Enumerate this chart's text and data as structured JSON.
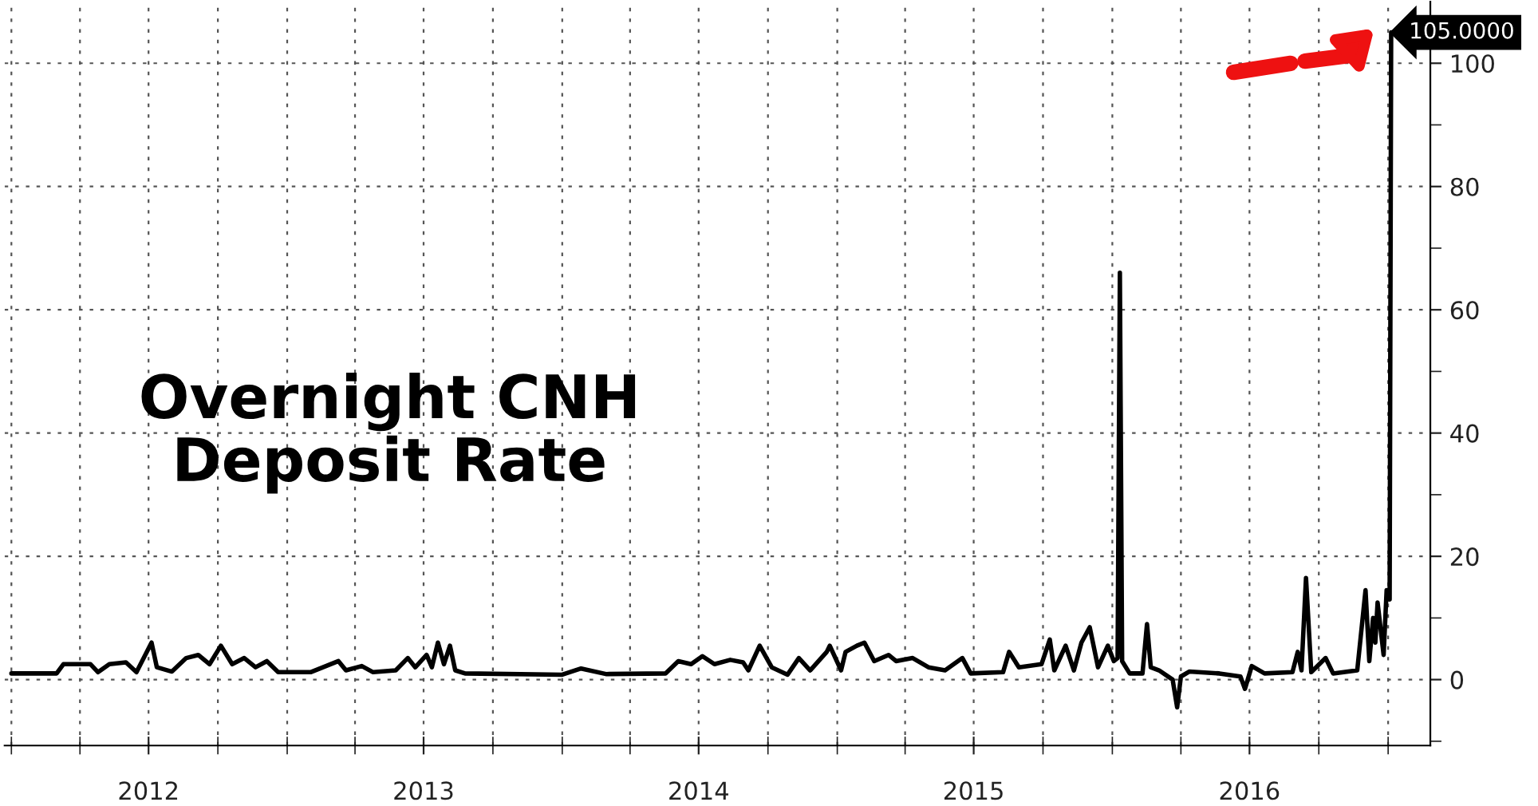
{
  "chart_data": {
    "type": "line",
    "title": "Overnight CNH Deposit Rate",
    "x": [
      "2012-01-01",
      "2012-03-01",
      "2012-03-10",
      "2012-04-15",
      "2012-04-25",
      "2012-05-10",
      "2012-06-01",
      "2012-06-15",
      "2012-07-05",
      "2012-07-12",
      "2012-08-01",
      "2012-08-20",
      "2012-09-05",
      "2012-09-20",
      "2012-10-05",
      "2012-10-20",
      "2012-11-05",
      "2012-11-20",
      "2012-12-05",
      "2012-12-20",
      "2013-01-05",
      "2013-02-01",
      "2013-03-10",
      "2013-03-20",
      "2013-04-10",
      "2013-04-25",
      "2013-05-25",
      "2013-06-10",
      "2013-06-20",
      "2013-07-05",
      "2013-07-12",
      "2013-07-20",
      "2013-07-28",
      "2013-08-05",
      "2013-08-12",
      "2013-08-25",
      "2014-01-01",
      "2014-01-26",
      "2014-02-28",
      "2014-05-18",
      "2014-06-04",
      "2014-06-21",
      "2014-07-06",
      "2014-07-22",
      "2014-08-12",
      "2014-08-29",
      "2014-09-05",
      "2014-09-20",
      "2014-10-06",
      "2014-10-27",
      "2014-11-11",
      "2014-11-26",
      "2014-12-18",
      "2014-12-22",
      "2015-01-06",
      "2015-01-12",
      "2015-01-27",
      "2015-02-06",
      "2015-02-19",
      "2015-03-10",
      "2015-03-20",
      "2015-04-11",
      "2015-05-02",
      "2015-05-24",
      "2015-06-16",
      "2015-06-27",
      "2015-08-09",
      "2015-08-17",
      "2015-08-30",
      "2015-09-29",
      "2015-10-10",
      "2015-10-16",
      "2015-10-31",
      "2015-11-11",
      "2015-11-21",
      "2015-12-02",
      "2015-12-13",
      "2015-12-26",
      "2016-01-03",
      "2016-01-08",
      "2016-01-11",
      "2016-01-14",
      "2016-01-24",
      "2016-02-10",
      "2016-02-16",
      "2016-02-21",
      "2016-03-03",
      "2016-03-21",
      "2016-03-27",
      "2016-04-01",
      "2016-04-12",
      "2016-05-22",
      "2016-06-19",
      "2016-06-25",
      "2016-07-04",
      "2016-07-21",
      "2016-08-27",
      "2016-09-03",
      "2016-09-08",
      "2016-09-14",
      "2016-09-21",
      "2016-10-10",
      "2016-10-20",
      "2016-11-21",
      "2016-12-02",
      "2016-12-07",
      "2016-12-12",
      "2016-12-15",
      "2016-12-18",
      "2016-12-26",
      "2016-12-30",
      "2017-01-03",
      "2017-01-05"
    ],
    "series": [
      {
        "color": "#000000",
        "values": [
          1.0,
          1.0,
          2.5,
          2.5,
          1.2,
          2.5,
          2.8,
          1.2,
          6.0,
          2.0,
          1.3,
          3.5,
          4.0,
          2.5,
          5.5,
          2.5,
          3.5,
          2.0,
          3.0,
          1.2,
          1.2,
          1.2,
          3.0,
          1.5,
          2.2,
          1.2,
          1.5,
          3.5,
          2.0,
          4.0,
          2.0,
          6.0,
          2.5,
          5.5,
          1.5,
          1.0,
          0.8,
          1.8,
          0.9,
          1.0,
          3.0,
          2.5,
          3.8,
          2.5,
          3.2,
          2.8,
          1.5,
          5.5,
          2.0,
          0.8,
          3.5,
          1.5,
          4.5,
          5.5,
          1.5,
          4.5,
          5.5,
          6.0,
          3.0,
          4.0,
          3.0,
          3.5,
          2.0,
          1.5,
          3.5,
          1.0,
          1.2,
          4.5,
          2.0,
          2.5,
          6.5,
          1.5,
          5.5,
          1.5,
          6.0,
          8.5,
          2.0,
          5.5,
          3.0,
          3.5,
          66,
          3.0,
          1.0,
          1.0,
          9.0,
          2.0,
          1.5,
          0,
          -4.5,
          0.5,
          1.3,
          1.0,
          0.5,
          -1.5,
          2.2,
          1.0,
          1.2,
          4.5,
          1.5,
          16.5,
          1.2,
          3.5,
          1.0,
          1.5,
          14.5,
          3.0,
          10.0,
          6.0,
          12.5,
          4.0,
          14.5,
          13.0,
          105
        ]
      }
    ],
    "xlim": [
      "2011-12-23",
      "2017-02-26"
    ],
    "xticks": [
      {
        "value": "2012-01-01",
        "label": null
      },
      {
        "value": "2012-04-01",
        "label": null
      },
      {
        "value": "2012-07-01",
        "label": "2012"
      },
      {
        "value": "2012-10-01",
        "label": null
      },
      {
        "value": "2013-01-01",
        "label": null
      },
      {
        "value": "2013-04-01",
        "label": null
      },
      {
        "value": "2013-07-01",
        "label": "2013"
      },
      {
        "value": "2013-10-01",
        "label": null
      },
      {
        "value": "2014-01-01",
        "label": null
      },
      {
        "value": "2014-04-01",
        "label": null
      },
      {
        "value": "2014-07-01",
        "label": "2014"
      },
      {
        "value": "2014-10-01",
        "label": null
      },
      {
        "value": "2015-01-01",
        "label": null
      },
      {
        "value": "2015-04-01",
        "label": null
      },
      {
        "value": "2015-07-01",
        "label": "2015"
      },
      {
        "value": "2015-10-01",
        "label": null
      },
      {
        "value": "2016-01-01",
        "label": null
      },
      {
        "value": "2016-04-01",
        "label": null
      },
      {
        "value": "2016-07-01",
        "label": "2016"
      },
      {
        "value": "2016-10-01",
        "label": null
      },
      {
        "value": "2017-01-01",
        "label": null
      }
    ],
    "ylim": [
      -10.7,
      110
    ],
    "yticks": [
      {
        "value": -10,
        "label": null
      },
      0,
      {
        "value": 10,
        "label": null
      },
      20,
      {
        "value": 30,
        "label": null
      },
      40,
      {
        "value": 50,
        "label": null
      },
      60,
      {
        "value": 70,
        "label": null
      },
      80,
      {
        "value": 90,
        "label": null
      },
      100
    ],
    "annotations": [
      {
        "text": "105.0000",
        "x": "2017-01-05",
        "y": 105
      }
    ],
    "grid": true,
    "marker": "none",
    "line_style": "solid"
  }
}
